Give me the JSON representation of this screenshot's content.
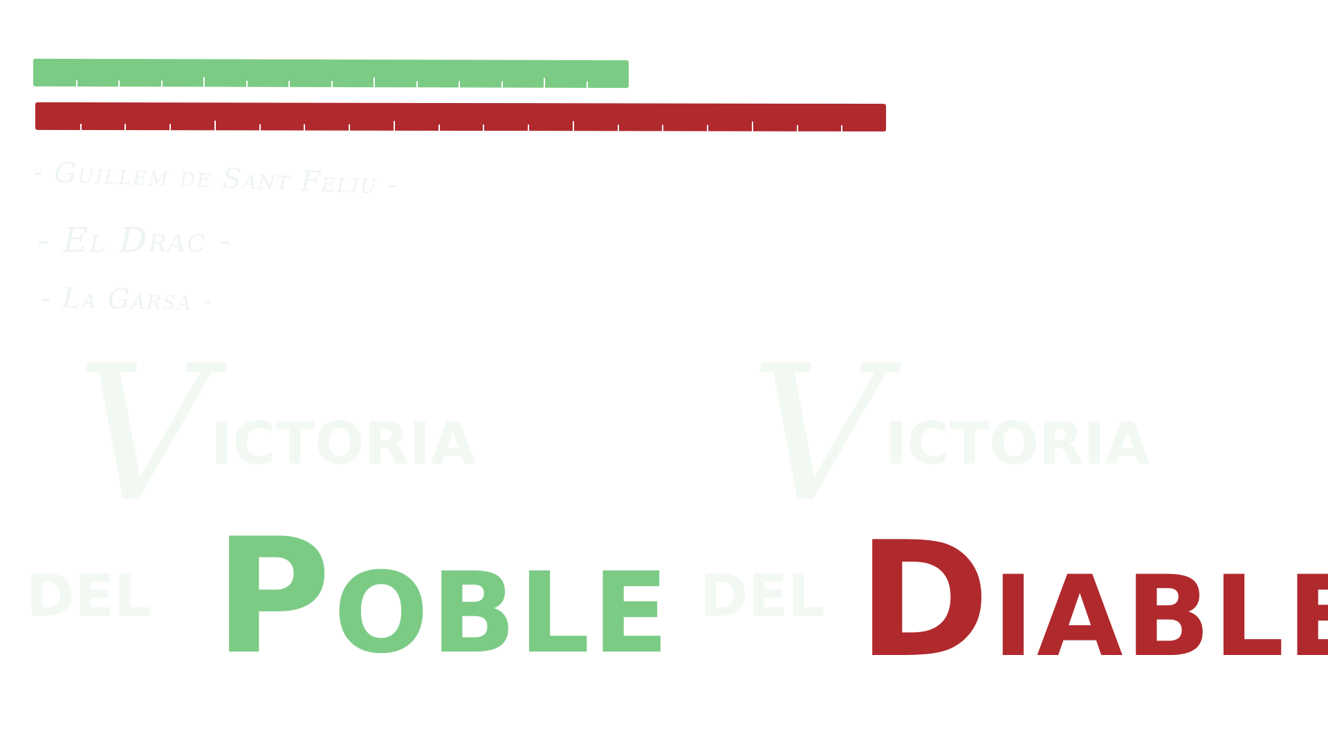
{
  "progress": {
    "poble": {
      "color": "#7ccb85",
      "fraction": 0.7,
      "ticks": 13
    },
    "diable": {
      "color": "#b0292c",
      "fraction": 1.0,
      "ticks": 18
    }
  },
  "credits": [
    "- Guillem de Sant Feliu -",
    "- El Drac -",
    "- La Garsa -"
  ],
  "left": {
    "ghost_initial": "V",
    "ghost_rest": "ictoria",
    "ghost_del": "del",
    "word": "Poble",
    "color": "#7ccb85"
  },
  "right": {
    "ghost_initial": "V",
    "ghost_rest": "ictoria",
    "ghost_del": "del",
    "word": "Diable",
    "color": "#b0292c"
  }
}
